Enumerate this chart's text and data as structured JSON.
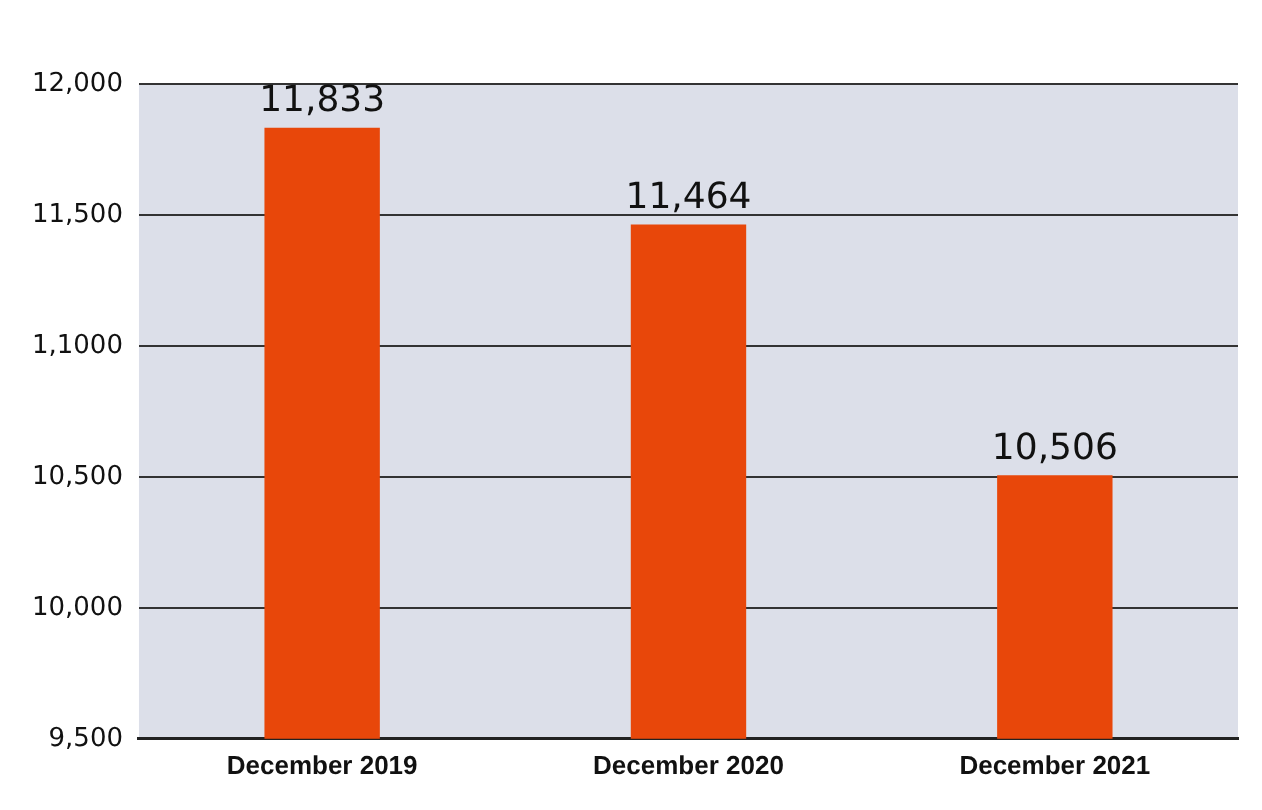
{
  "chart_data": {
    "type": "bar",
    "categories": [
      "December 2019",
      "December 2020",
      "December 2021"
    ],
    "values": [
      11833,
      11464,
      10506
    ],
    "color": "#e8470a",
    "value_labels": [
      "11,833",
      "11,464",
      "10,506"
    ],
    "ylim": [
      9500,
      12000
    ],
    "yticks": [
      {
        "value": 9500,
        "label": "9,500"
      },
      {
        "value": 10000,
        "label": "10,000"
      },
      {
        "value": 10500,
        "label": "10,500"
      },
      {
        "value": 11000,
        "label": "1,1000"
      },
      {
        "value": 11500,
        "label": "11,500"
      },
      {
        "value": 12000,
        "label": "12,000"
      }
    ],
    "grid": "y",
    "legend": false
  }
}
